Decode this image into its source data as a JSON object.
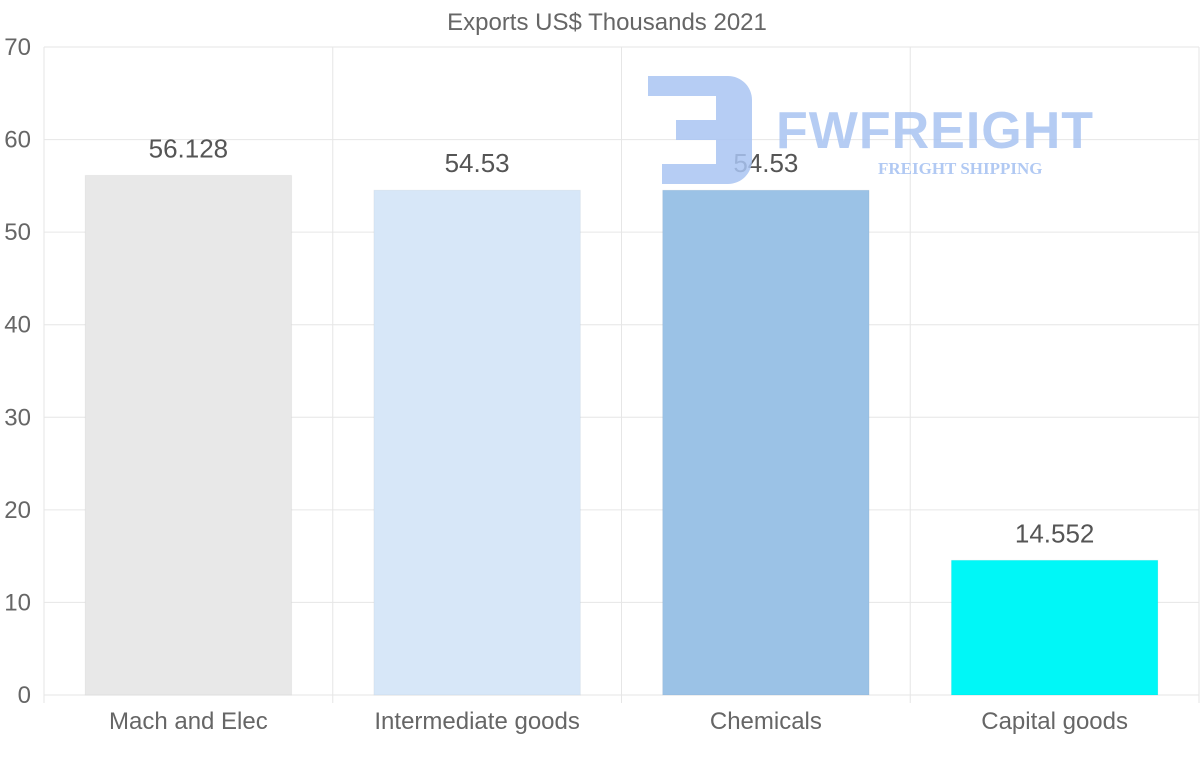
{
  "chart_data": {
    "type": "bar",
    "title": "Exports US$ Thousands 2021",
    "categories": [
      "Mach and Elec",
      "Intermediate goods",
      "Chemicals",
      "Capital goods"
    ],
    "values": [
      56.128,
      54.53,
      54.53,
      14.552
    ],
    "data_labels": [
      "56.128",
      "54.53",
      "54.53",
      "14.552"
    ],
    "colors": [
      "#e8e8e8",
      "#d7e7f8",
      "#9bc2e6",
      "#00f7f7"
    ],
    "ylim": [
      0,
      70
    ],
    "yticks": [
      0,
      10,
      20,
      30,
      40,
      50,
      60,
      70
    ],
    "xlabel": "",
    "ylabel": "",
    "grid": true
  },
  "watermark": {
    "brand": "FWFREIGHT",
    "tagline": "FREIGHT SHIPPING",
    "color": "#a9c4f2"
  }
}
